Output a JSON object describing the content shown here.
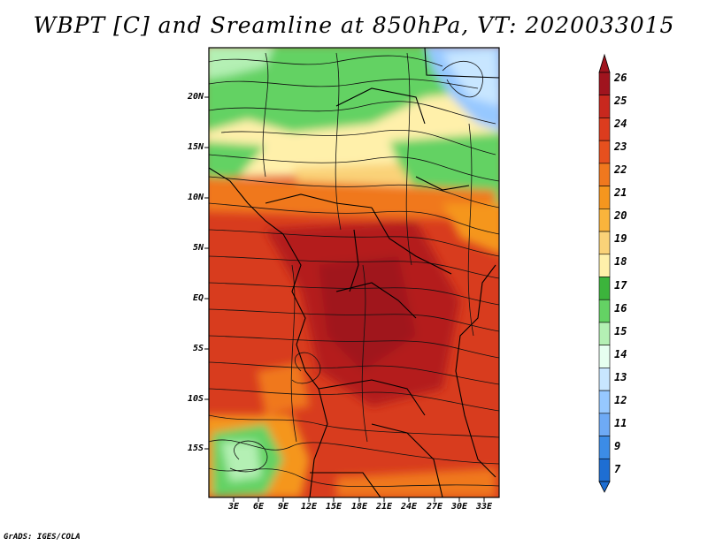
{
  "title": "WBPT [C] and Sreamline at 850hPa, VT: 2020033015",
  "footer": "GrADS: IGES/COLA",
  "lat_labels": [
    "20N",
    "15N",
    "10N",
    "5N",
    "EQ",
    "5S",
    "10S",
    "15S"
  ],
  "lon_labels": [
    "3E",
    "6E",
    "9E",
    "12E",
    "15E",
    "18E",
    "21E",
    "24E",
    "27E",
    "30E",
    "33E"
  ],
  "colorbar": {
    "labels": [
      "26",
      "25",
      "24",
      "23",
      "22",
      "21",
      "20",
      "19",
      "18",
      "17",
      "16",
      "15",
      "14",
      "13",
      "12",
      "11",
      "9",
      "7"
    ],
    "colors": [
      "#a0141e",
      "#c8281e",
      "#dc3c1e",
      "#e6501e",
      "#f0781e",
      "#f5961e",
      "#fab43c",
      "#fad278",
      "#fff0aa",
      "#3cb43c",
      "#64d264",
      "#b4f0b4",
      "#e6fff0",
      "#c8e6ff",
      "#96c8ff",
      "#6eaaf5",
      "#3c8ce6",
      "#1e6ed2"
    ]
  },
  "legend": {
    "field": "WBPT [C]",
    "overlay": "Sreamline",
    "level": "850hPa",
    "valid_time": "2020033015"
  }
}
